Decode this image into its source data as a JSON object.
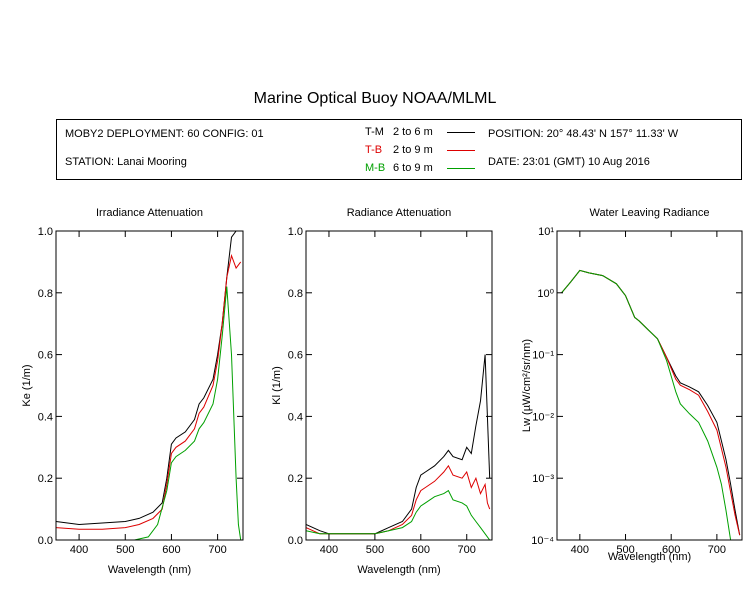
{
  "title": "Marine Optical Buoy NOAA/MLML",
  "info": {
    "deployment": "MOBY2 DEPLOYMENT: 60 CONFIG: 01",
    "station": "STATION: Lanai Mooring",
    "position": "POSITION: 20° 48.43' N   157° 11.33' W",
    "date": "DATE: 23:01 (GMT) 10 Aug 2016",
    "legend": [
      {
        "code": "T-M",
        "range": "2 to 6  m",
        "color": "#000000"
      },
      {
        "code": "T-B",
        "range": "2 to 9  m",
        "color": "#dd0000"
      },
      {
        "code": "M-B",
        "range": "6 to 9  m",
        "color": "#00a000"
      }
    ]
  },
  "chart_data": [
    {
      "type": "line",
      "title": "Irradiance Attenuation",
      "xlabel": "Wavelength (nm)",
      "ylabel": "Ke  (1/m)",
      "xlim": [
        350,
        755
      ],
      "ylim": [
        0,
        1
      ],
      "xticks": [
        400,
        500,
        600,
        700
      ],
      "yticks": [
        0.0,
        0.2,
        0.4,
        0.6,
        0.8,
        1.0
      ],
      "ytick_labels": [
        "0.0",
        "0.2",
        "0.4",
        "0.6",
        "0.8",
        "1.0"
      ],
      "series": [
        {
          "name": "T-M",
          "color": "#000000",
          "x": [
            350,
            400,
            450,
            500,
            530,
            560,
            580,
            590,
            600,
            610,
            630,
            650,
            660,
            670,
            690,
            700,
            710,
            720,
            730,
            740,
            750
          ],
          "y": [
            0.06,
            0.05,
            0.055,
            0.06,
            0.07,
            0.09,
            0.12,
            0.2,
            0.31,
            0.33,
            0.35,
            0.39,
            0.44,
            0.46,
            0.52,
            0.6,
            0.7,
            0.85,
            0.98,
            1.0,
            1.0
          ]
        },
        {
          "name": "T-B",
          "color": "#dd0000",
          "x": [
            350,
            400,
            450,
            500,
            530,
            560,
            580,
            590,
            600,
            610,
            630,
            650,
            660,
            670,
            690,
            700,
            710,
            720,
            730,
            740,
            750
          ],
          "y": [
            0.04,
            0.035,
            0.035,
            0.04,
            0.05,
            0.07,
            0.1,
            0.18,
            0.28,
            0.3,
            0.32,
            0.36,
            0.41,
            0.43,
            0.5,
            0.58,
            0.7,
            0.85,
            0.92,
            0.88,
            0.9
          ]
        },
        {
          "name": "M-B",
          "color": "#00a000",
          "x": [
            350,
            400,
            450,
            500,
            520,
            550,
            570,
            590,
            600,
            610,
            630,
            650,
            660,
            670,
            690,
            700,
            710,
            720,
            730,
            740,
            745,
            750
          ],
          "y": [
            0.0,
            0.0,
            0.0,
            0.0,
            0.0,
            0.01,
            0.05,
            0.16,
            0.25,
            0.27,
            0.29,
            0.32,
            0.36,
            0.38,
            0.44,
            0.52,
            0.66,
            0.82,
            0.6,
            0.2,
            0.05,
            0.0
          ]
        }
      ]
    },
    {
      "type": "line",
      "title": "Radiance Attenuation",
      "xlabel": "Wavelength (nm)",
      "ylabel": "Kl  (1/m)",
      "xlim": [
        350,
        755
      ],
      "ylim": [
        0,
        1
      ],
      "xticks": [
        400,
        500,
        600,
        700
      ],
      "yticks": [
        0.0,
        0.2,
        0.4,
        0.6,
        0.8,
        1.0
      ],
      "ytick_labels": [
        "0.0",
        "0.2",
        "0.4",
        "0.6",
        "0.8",
        "1.0"
      ],
      "series": [
        {
          "name": "T-M",
          "color": "#000000",
          "x": [
            350,
            380,
            400,
            450,
            500,
            530,
            560,
            580,
            590,
            600,
            610,
            630,
            650,
            660,
            670,
            690,
            700,
            710,
            720,
            730,
            740,
            745,
            750
          ],
          "y": [
            0.05,
            0.03,
            0.02,
            0.02,
            0.02,
            0.04,
            0.06,
            0.1,
            0.17,
            0.21,
            0.22,
            0.24,
            0.27,
            0.29,
            0.27,
            0.26,
            0.3,
            0.28,
            0.37,
            0.45,
            0.6,
            0.4,
            0.2
          ]
        },
        {
          "name": "T-B",
          "color": "#dd0000",
          "x": [
            350,
            380,
            400,
            450,
            500,
            530,
            560,
            580,
            590,
            600,
            610,
            630,
            650,
            660,
            670,
            690,
            700,
            710,
            720,
            730,
            740,
            745,
            750
          ],
          "y": [
            0.04,
            0.02,
            0.02,
            0.02,
            0.02,
            0.03,
            0.05,
            0.08,
            0.13,
            0.16,
            0.17,
            0.19,
            0.22,
            0.24,
            0.21,
            0.2,
            0.22,
            0.17,
            0.2,
            0.15,
            0.18,
            0.12,
            0.1
          ]
        },
        {
          "name": "M-B",
          "color": "#00a000",
          "x": [
            350,
            380,
            400,
            450,
            500,
            530,
            560,
            580,
            590,
            600,
            610,
            630,
            650,
            660,
            670,
            690,
            700,
            710,
            720,
            730,
            740,
            745,
            750
          ],
          "y": [
            0.03,
            0.02,
            0.02,
            0.02,
            0.02,
            0.03,
            0.04,
            0.06,
            0.09,
            0.11,
            0.12,
            0.14,
            0.15,
            0.16,
            0.13,
            0.12,
            0.11,
            0.08,
            0.06,
            0.04,
            0.02,
            0.01,
            0.0
          ]
        }
      ]
    },
    {
      "type": "line",
      "title": "Water Leaving Radiance",
      "xlabel": "Wavelength (nm)",
      "ylabel": "Lw  (µW/cm²/sr/nm)",
      "xlim": [
        350,
        755
      ],
      "ylim": [
        0.0001,
        10
      ],
      "yscale": "log",
      "xticks": [
        400,
        500,
        600,
        700
      ],
      "yticks": [
        0.0001,
        0.001,
        0.01,
        0.1,
        1,
        10
      ],
      "ytick_labels": [
        "10⁻⁴",
        "10⁻³",
        "10⁻²",
        "10⁻¹",
        "10⁰",
        "10¹"
      ],
      "series": [
        {
          "name": "T-M",
          "color": "#000000",
          "x": [
            360,
            380,
            400,
            420,
            450,
            480,
            500,
            520,
            530,
            550,
            570,
            590,
            610,
            620,
            640,
            660,
            680,
            700,
            720,
            730,
            740,
            750
          ],
          "y": [
            1.0,
            1.5,
            2.3,
            2.1,
            1.9,
            1.4,
            0.9,
            0.4,
            0.35,
            0.25,
            0.18,
            0.09,
            0.045,
            0.035,
            0.03,
            0.025,
            0.015,
            0.008,
            0.002,
            0.0008,
            0.0003,
            0.00012
          ]
        },
        {
          "name": "T-B",
          "color": "#dd0000",
          "x": [
            360,
            380,
            400,
            420,
            450,
            480,
            500,
            520,
            530,
            550,
            570,
            590,
            610,
            620,
            640,
            660,
            680,
            700,
            720,
            730,
            740,
            750
          ],
          "y": [
            1.0,
            1.5,
            2.3,
            2.1,
            1.9,
            1.4,
            0.9,
            0.4,
            0.35,
            0.25,
            0.18,
            0.09,
            0.04,
            0.032,
            0.027,
            0.022,
            0.012,
            0.006,
            0.0015,
            0.0006,
            0.00025,
            0.00012
          ]
        },
        {
          "name": "M-B",
          "color": "#00a000",
          "x": [
            360,
            380,
            400,
            420,
            450,
            480,
            500,
            520,
            530,
            550,
            570,
            590,
            610,
            620,
            640,
            660,
            680,
            700,
            710,
            720,
            730
          ],
          "y": [
            1.0,
            1.5,
            2.3,
            2.1,
            1.9,
            1.4,
            0.9,
            0.4,
            0.35,
            0.25,
            0.18,
            0.08,
            0.025,
            0.016,
            0.011,
            0.008,
            0.004,
            0.0015,
            0.0008,
            0.0003,
            0.0001
          ]
        }
      ]
    }
  ]
}
